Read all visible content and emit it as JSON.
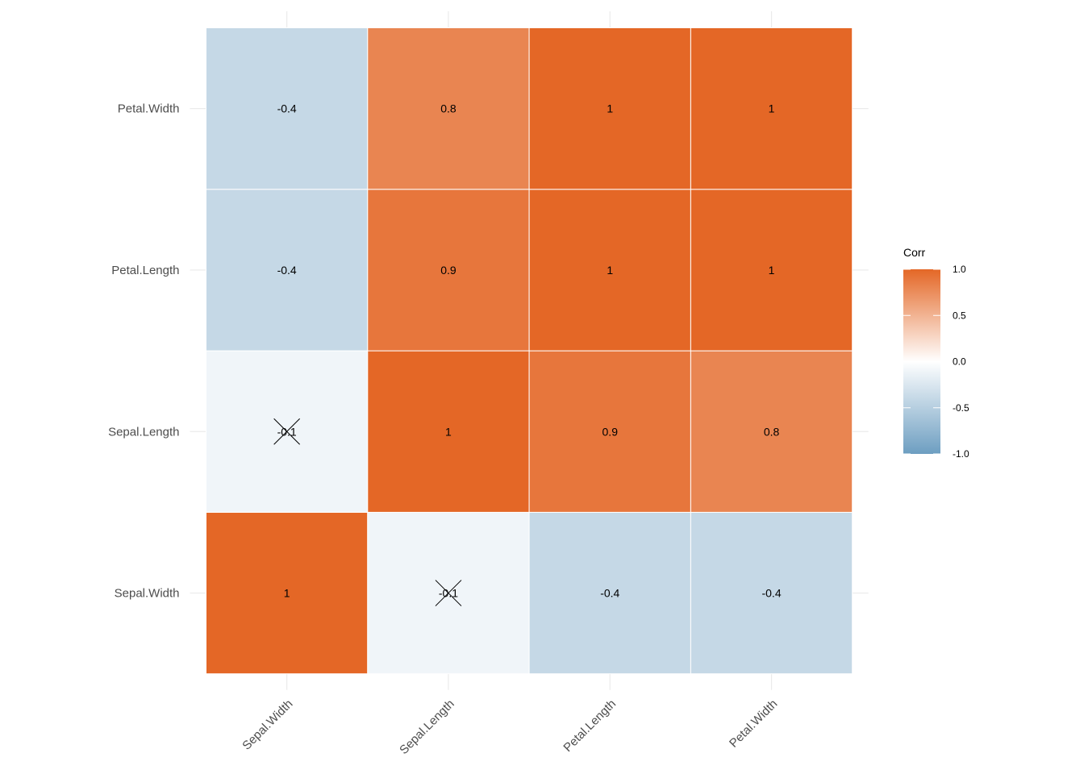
{
  "chart_data": {
    "type": "heatmap",
    "title": "",
    "xlabel": "",
    "ylabel": "",
    "x_categories": [
      "Sepal.Width",
      "Sepal.Length",
      "Petal.Length",
      "Petal.Width"
    ],
    "y_categories": [
      "Sepal.Width",
      "Sepal.Length",
      "Petal.Length",
      "Petal.Width"
    ],
    "values": [
      [
        1.0,
        -0.1,
        -0.4,
        -0.4
      ],
      [
        -0.1,
        1.0,
        0.9,
        0.8
      ],
      [
        -0.4,
        0.9,
        1.0,
        1.0
      ],
      [
        -0.4,
        0.8,
        1.0,
        1.0
      ]
    ],
    "labels": [
      [
        "1",
        "-0.1",
        "-0.4",
        "-0.4"
      ],
      [
        "-0.1",
        "1",
        "0.9",
        "0.8"
      ],
      [
        "-0.4",
        "0.9",
        "1",
        "1"
      ],
      [
        "-0.4",
        "0.8",
        "1",
        "1"
      ]
    ],
    "insignificant": [
      [
        false,
        true,
        false,
        false
      ],
      [
        true,
        false,
        false,
        false
      ],
      [
        false,
        false,
        false,
        false
      ],
      [
        false,
        false,
        false,
        false
      ]
    ],
    "color_scale": {
      "low": "#6d9ec1",
      "mid": "#ffffff",
      "high": "#e46726",
      "limits": [
        -1,
        1
      ]
    },
    "legend": {
      "title": "Corr",
      "position": "right",
      "ticks": [
        1.0,
        0.5,
        0.0,
        -0.5,
        -1.0
      ],
      "tick_labels": [
        "1.0",
        "0.5",
        "0.0",
        "-0.5",
        "-1.0"
      ]
    },
    "grid": true
  }
}
